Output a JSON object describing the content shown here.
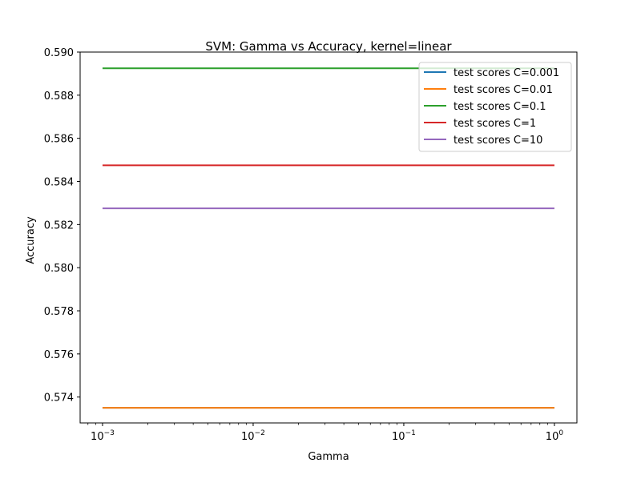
{
  "chart_data": {
    "type": "line",
    "title": "SVM: Gamma vs Accuracy, kernel=linear",
    "xlabel": "Gamma",
    "ylabel": "Accuracy",
    "x_scale": "log",
    "x": [
      0.001,
      0.01,
      0.1,
      1
    ],
    "xlim": [
      0.00071,
      1.41
    ],
    "ylim": [
      0.5728,
      0.59
    ],
    "x_ticks": [
      {
        "value": 0.001,
        "base": "10",
        "exp": "−3"
      },
      {
        "value": 0.01,
        "base": "10",
        "exp": "−2"
      },
      {
        "value": 0.1,
        "base": "10",
        "exp": "−1"
      },
      {
        "value": 1,
        "base": "10",
        "exp": "0"
      }
    ],
    "y_ticks": [
      0.574,
      0.576,
      0.578,
      0.58,
      0.582,
      0.584,
      0.586,
      0.588,
      0.59
    ],
    "y_tick_labels": [
      "0.574",
      "0.576",
      "0.578",
      "0.580",
      "0.582",
      "0.584",
      "0.586",
      "0.588",
      "0.590"
    ],
    "grid": false,
    "legend_position": "top-right",
    "series": [
      {
        "name": "test scores C=0.001",
        "color": "#1f77b4",
        "values": [
          0.5735,
          0.5735,
          0.5735,
          0.5735
        ]
      },
      {
        "name": "test scores C=0.01",
        "color": "#ff7f0e",
        "values": [
          0.5735,
          0.5735,
          0.5735,
          0.5735
        ]
      },
      {
        "name": "test scores C=0.1",
        "color": "#2ca02c",
        "values": [
          0.58925,
          0.58925,
          0.58925,
          0.58925
        ]
      },
      {
        "name": "test scores C=1",
        "color": "#d62728",
        "values": [
          0.58475,
          0.58475,
          0.58475,
          0.58475
        ]
      },
      {
        "name": "test scores C=10",
        "color": "#9467bd",
        "values": [
          0.58275,
          0.58275,
          0.58275,
          0.58275
        ]
      }
    ]
  }
}
